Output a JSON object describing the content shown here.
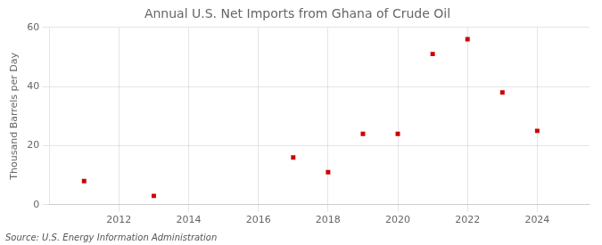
{
  "chart_data": {
    "type": "scatter",
    "title": "Annual U.S. Net Imports from Ghana of Crude Oil",
    "ylabel": "Thousand Barrels per Day",
    "annotations": [
      "Source: U.S. Energy Information Administration"
    ],
    "x": [
      2011,
      2013,
      2017,
      2018,
      2019,
      2020,
      2021,
      2022,
      2023,
      2024
    ],
    "values": [
      8,
      3,
      16,
      11,
      24,
      24,
      51,
      56,
      38,
      25
    ],
    "color": "#cc0000",
    "marker": "square",
    "xlim": [
      2010.0,
      2025.5
    ],
    "xticks": [
      2012,
      2014,
      2016,
      2018,
      2020,
      2022,
      2024
    ],
    "ylim": [
      0,
      60
    ],
    "yticks": [
      0,
      20,
      40,
      60
    ],
    "grid": true
  }
}
